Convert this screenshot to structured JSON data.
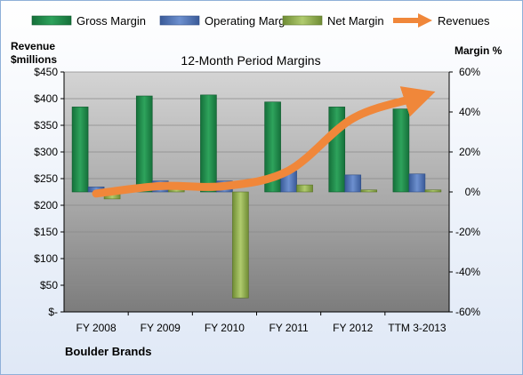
{
  "chart_data": {
    "type": "bar",
    "title": "12-Month Period Margins",
    "company": "Boulder Brands",
    "y_left_label": [
      "Revenue",
      "$millions"
    ],
    "y_right_label": "Margin %",
    "categories": [
      "FY 2008",
      "FY 2009",
      "FY 2010",
      "FY 2011",
      "FY 2012",
      "TTM 3-2013"
    ],
    "y_left_ticks": [
      "$450",
      "$400",
      "$350",
      "$300",
      "$250",
      "$200",
      "$150",
      "$100",
      "$50",
      "$-"
    ],
    "y_right_ticks": [
      "60%",
      "40%",
      "20%",
      "0%",
      "-20%",
      "-40%",
      "-60%"
    ],
    "ylim_left": [
      0,
      450
    ],
    "ylim_right": [
      -60,
      60
    ],
    "legend_placement": "top",
    "series": [
      {
        "name": "Gross Margin",
        "axis": "right",
        "type": "bar",
        "color": "#1e8b4c",
        "values": [
          42.5,
          48.0,
          48.5,
          45.0,
          42.5,
          41.5
        ]
      },
      {
        "name": "Operating Margin",
        "axis": "right",
        "type": "bar",
        "color": "#4a6fb5",
        "values": [
          2.5,
          5.5,
          5.5,
          10.5,
          8.5,
          9.0
        ]
      },
      {
        "name": "Net Margin",
        "axis": "right",
        "type": "bar",
        "color": "#8fb04a",
        "values": [
          -3.5,
          1.5,
          -53.0,
          3.5,
          1.0,
          1.0
        ]
      },
      {
        "name": "Revenues",
        "axis": "left",
        "type": "line",
        "color": "#f0873a",
        "values": [
          222,
          236,
          236,
          265,
          363,
          402
        ]
      }
    ]
  }
}
